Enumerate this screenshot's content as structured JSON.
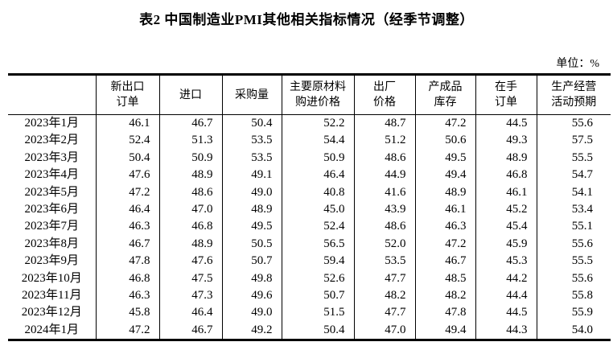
{
  "page": {
    "title": "表2 中国制造业PMI其他相关指标情况（经季节调整）",
    "unit_label": "单位：%"
  },
  "table": {
    "columns": [
      {
        "name": "row-header",
        "lines": []
      },
      {
        "name": "new-export-orders",
        "lines": [
          "新出口",
          "订单"
        ]
      },
      {
        "name": "imports",
        "lines": [
          "进口"
        ]
      },
      {
        "name": "purchasing-volume",
        "lines": [
          "采购量"
        ]
      },
      {
        "name": "main-raw-material-purchase-price",
        "lines": [
          "主要原材料",
          "购进价格"
        ]
      },
      {
        "name": "ex-factory-price",
        "lines": [
          "出厂",
          "价格"
        ]
      },
      {
        "name": "finished-goods-inventory",
        "lines": [
          "产成品",
          "库存"
        ]
      },
      {
        "name": "orders-in-hand",
        "lines": [
          "在手",
          "订单"
        ]
      },
      {
        "name": "production-business-expectation",
        "lines": [
          "生产经营",
          "活动预期"
        ]
      }
    ],
    "rows": [
      {
        "month": "2023年1月",
        "values": [
          "46.1",
          "46.7",
          "50.4",
          "52.2",
          "48.7",
          "47.2",
          "44.5",
          "55.6"
        ]
      },
      {
        "month": "2023年2月",
        "values": [
          "52.4",
          "51.3",
          "53.5",
          "54.4",
          "51.2",
          "50.6",
          "49.3",
          "57.5"
        ]
      },
      {
        "month": "2023年3月",
        "values": [
          "50.4",
          "50.9",
          "53.5",
          "50.9",
          "48.6",
          "49.5",
          "48.9",
          "55.5"
        ]
      },
      {
        "month": "2023年4月",
        "values": [
          "47.6",
          "48.9",
          "49.1",
          "46.4",
          "44.9",
          "49.4",
          "46.8",
          "54.7"
        ]
      },
      {
        "month": "2023年5月",
        "values": [
          "47.2",
          "48.6",
          "49.0",
          "40.8",
          "41.6",
          "48.9",
          "46.1",
          "54.1"
        ]
      },
      {
        "month": "2023年6月",
        "values": [
          "46.4",
          "47.0",
          "48.9",
          "45.0",
          "43.9",
          "46.1",
          "45.2",
          "53.4"
        ]
      },
      {
        "month": "2023年7月",
        "values": [
          "46.3",
          "46.8",
          "49.5",
          "52.4",
          "48.6",
          "46.3",
          "45.4",
          "55.1"
        ]
      },
      {
        "month": "2023年8月",
        "values": [
          "46.7",
          "48.9",
          "50.5",
          "56.5",
          "52.0",
          "47.2",
          "45.9",
          "55.6"
        ]
      },
      {
        "month": "2023年9月",
        "values": [
          "47.8",
          "47.6",
          "50.7",
          "59.4",
          "53.5",
          "46.7",
          "45.3",
          "55.5"
        ]
      },
      {
        "month": "2023年10月",
        "values": [
          "46.8",
          "47.5",
          "49.8",
          "52.6",
          "47.7",
          "48.5",
          "44.2",
          "55.6"
        ]
      },
      {
        "month": "2023年11月",
        "values": [
          "46.3",
          "47.3",
          "49.6",
          "50.7",
          "48.2",
          "48.2",
          "44.4",
          "55.8"
        ]
      },
      {
        "month": "2023年12月",
        "values": [
          "45.8",
          "46.4",
          "49.0",
          "51.5",
          "47.7",
          "47.8",
          "44.5",
          "55.9"
        ]
      },
      {
        "month": "2024年1月",
        "values": [
          "47.2",
          "46.7",
          "49.2",
          "50.4",
          "47.0",
          "49.4",
          "44.3",
          "54.0"
        ]
      }
    ]
  }
}
